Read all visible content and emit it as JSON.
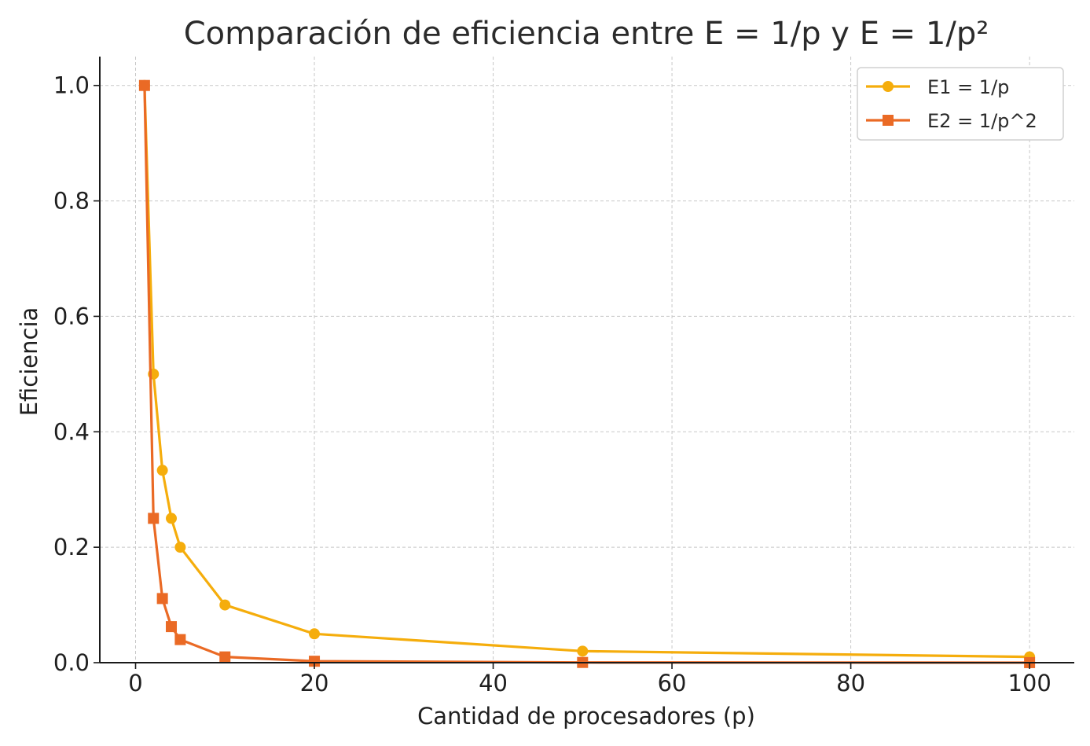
{
  "chart_data": {
    "type": "line",
    "title": "Comparación de eficiencia entre E = 1/p y E = 1/p²",
    "xlabel": "Cantidad de procesadores (p)",
    "ylabel": "Eficiencia",
    "xlim": [
      -4,
      105
    ],
    "ylim": [
      0,
      1.05
    ],
    "xticks": [
      0,
      20,
      40,
      60,
      80,
      100
    ],
    "xtick_labels": [
      "0",
      "20",
      "40",
      "60",
      "80",
      "100"
    ],
    "yticks": [
      0.0,
      0.2,
      0.4,
      0.6,
      0.8,
      1.0
    ],
    "ytick_labels": [
      "0.0",
      "0.2",
      "0.4",
      "0.6",
      "0.8",
      "1.0"
    ],
    "grid": true,
    "legend_position": "top-right",
    "x": [
      1,
      2,
      3,
      4,
      5,
      10,
      20,
      50,
      100
    ],
    "series": [
      {
        "name": "E1 = 1/p",
        "color": "#f5ad0c",
        "marker": "circle",
        "values": [
          1.0,
          0.5,
          0.3333,
          0.25,
          0.2,
          0.1,
          0.05,
          0.02,
          0.01
        ]
      },
      {
        "name": "E2 = 1/p^2",
        "color": "#ea6a25",
        "marker": "square",
        "values": [
          1.0,
          0.25,
          0.1111,
          0.0625,
          0.04,
          0.01,
          0.0025,
          0.0004,
          0.0001
        ]
      }
    ]
  }
}
